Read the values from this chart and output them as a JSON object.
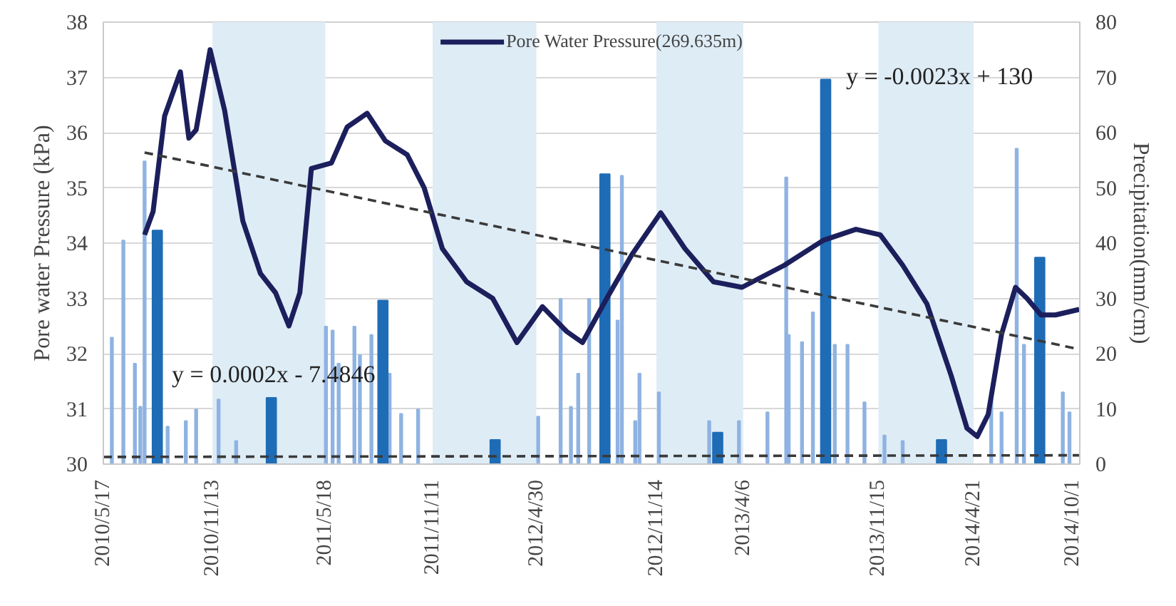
{
  "chart_data": {
    "type": "line",
    "ylabel": "Pore water Pressure (kPa)",
    "y2label": "Precipitation(mm/cm)",
    "xlim": [
      "2010-05-17",
      "2014-10-13"
    ],
    "xticks": [
      {
        "value": "2010-05-17",
        "label": "2010/5/17"
      },
      {
        "value": "2010-11-13",
        "label": "2010/11/13"
      },
      {
        "value": "2011-05-18",
        "label": "2011/5/18"
      },
      {
        "value": "2011-11-11",
        "label": "2011/11/11"
      },
      {
        "value": "2012-04-30",
        "label": "2012/4/30"
      },
      {
        "value": "2012-11-14",
        "label": "2012/11/14"
      },
      {
        "value": "2013-04-06",
        "label": "2013/4/6"
      },
      {
        "value": "2013-11-15",
        "label": "2013/11/15"
      },
      {
        "value": "2014-04-21",
        "label": "2014/4/21"
      },
      {
        "value": "2014-10-01",
        "label": "2014/10/1"
      }
    ],
    "ylim": [
      30,
      38
    ],
    "yticks": [
      30,
      31,
      32,
      33,
      34,
      35,
      36,
      37,
      38
    ],
    "y2lim": [
      0,
      80
    ],
    "y2ticks": [
      0,
      10,
      20,
      30,
      40,
      50,
      60,
      70,
      80
    ],
    "grid": "y",
    "legend": "top",
    "bands": [
      {
        "axis": "x",
        "from": "2010-11-13",
        "to": "2011-05-18",
        "color": "#deecf6"
      },
      {
        "axis": "x",
        "from": "2011-11-11",
        "to": "2012-04-30",
        "color": "#deecf6"
      },
      {
        "axis": "x",
        "from": "2012-11-14",
        "to": "2013-04-06",
        "color": "#deecf6"
      },
      {
        "axis": "x",
        "from": "2013-11-15",
        "to": "2014-04-21",
        "color": "#deecf6"
      }
    ],
    "annotations": [
      "y = 0.0002x - 7.4846",
      "y = -0.0023x + 130"
    ],
    "series": [
      {
        "type": "bar",
        "axis": "y2",
        "color": "#8fb3e2",
        "x": [
          "2010-05-31",
          "2010-06-19",
          "2010-07-08",
          "2010-07-17",
          "2010-07-24",
          "2010-08-31",
          "2010-09-30",
          "2010-10-17",
          "2010-11-23",
          "2010-12-22",
          "2011-05-19",
          "2011-05-30",
          "2011-06-09",
          "2011-07-05",
          "2011-07-14",
          "2011-08-02",
          "2011-09-01",
          "2011-09-20",
          "2011-10-18",
          "2012-05-03",
          "2012-06-09",
          "2012-06-26",
          "2012-07-08",
          "2012-07-26",
          "2012-09-11",
          "2012-09-18",
          "2012-10-10",
          "2012-10-17",
          "2012-11-18",
          "2013-02-09",
          "2013-03-30",
          "2013-05-16",
          "2013-06-16",
          "2013-06-20",
          "2013-07-12",
          "2013-07-30",
          "2013-09-04",
          "2013-09-25",
          "2013-10-23",
          "2013-11-25",
          "2013-12-25",
          "2014-05-20",
          "2014-06-06",
          "2014-07-01",
          "2014-07-13",
          "2014-09-15",
          "2014-09-26"
        ],
        "values": [
          22.9,
          40.5,
          18.2,
          10.4,
          54.8,
          6.8,
          7.8,
          9.9,
          11.7,
          4.2,
          24.9,
          24.2,
          18.2,
          24.9,
          19.7,
          23.4,
          16.4,
          9.1,
          9.9,
          8.6,
          29.9,
          10.4,
          16.4,
          29.9,
          26.0,
          52.2,
          7.8,
          16.4,
          13.0,
          7.8,
          7.8,
          9.4,
          51.9,
          23.4,
          22.1,
          27.5,
          21.6,
          21.6,
          11.2,
          5.2,
          4.2,
          12.0,
          9.4,
          57.1,
          21.6,
          13.0,
          9.4
        ]
      },
      {
        "type": "bar",
        "axis": "y2",
        "color": "#1f6cb6",
        "x": [
          "2010-08-14",
          "2011-02-18",
          "2011-08-21",
          "2012-02-22",
          "2012-08-21",
          "2013-02-23",
          "2013-08-20",
          "2014-02-27",
          "2014-08-08"
        ],
        "values": [
          42.3,
          12.0,
          29.6,
          4.4,
          52.5,
          5.7,
          69.6,
          4.4,
          37.4
        ]
      },
      {
        "name": "Pore Water Pressure(269.635m)",
        "color": "#1c1f5c",
        "line_style": "solid",
        "x": [
          "2010-07-24",
          "2010-08-07",
          "2010-08-26",
          "2010-09-21",
          "2010-10-05",
          "2010-10-17",
          "2010-11-09",
          "2010-12-03",
          "2011-01-02",
          "2011-01-31",
          "2011-02-25",
          "2011-03-19",
          "2011-04-06",
          "2011-04-25",
          "2011-05-28",
          "2011-06-23",
          "2011-07-26",
          "2011-08-25",
          "2011-09-30",
          "2011-10-28",
          "2011-11-27",
          "2012-01-06",
          "2012-02-18",
          "2012-03-29",
          "2012-05-10",
          "2012-06-19",
          "2012-07-15",
          "2012-08-24",
          "2012-10-05",
          "2012-11-21",
          "2012-12-31",
          "2013-02-16",
          "2013-04-04",
          "2013-06-13",
          "2013-08-16",
          "2013-10-09",
          "2013-11-18",
          "2013-12-25",
          "2014-02-03",
          "2014-03-15",
          "2014-04-10",
          "2014-04-27",
          "2014-05-15",
          "2014-06-06",
          "2014-06-29",
          "2014-07-18",
          "2014-08-10",
          "2014-09-03",
          "2014-10-12"
        ],
        "values": [
          34.15,
          34.57,
          36.3,
          37.1,
          35.9,
          36.05,
          37.5,
          36.4,
          34.4,
          33.45,
          33.1,
          32.5,
          33.1,
          35.35,
          35.45,
          36.1,
          36.35,
          35.85,
          35.6,
          35.0,
          33.9,
          33.3,
          33.0,
          32.2,
          32.85,
          32.4,
          32.2,
          33.0,
          33.8,
          34.55,
          33.9,
          33.3,
          33.2,
          33.6,
          34.05,
          34.25,
          34.15,
          33.6,
          32.9,
          31.6,
          30.65,
          30.5,
          30.9,
          32.35,
          33.2,
          33.0,
          32.7,
          32.7,
          32.8
        ]
      },
      {
        "color": "#3a3a3a",
        "line_style": "dashed",
        "x": [
          "2010-07-24",
          "2014-10-12"
        ],
        "values": [
          35.64,
          32.08
        ]
      },
      {
        "axis": "y2",
        "color": "#3a3a3a",
        "line_style": "dashed",
        "x": [
          "2010-05-17",
          "2014-10-12"
        ],
        "values": [
          1.3,
          1.6
        ]
      }
    ]
  }
}
